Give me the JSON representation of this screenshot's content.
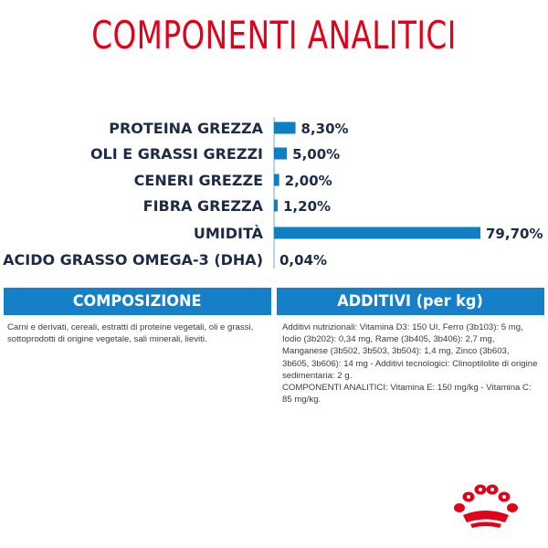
{
  "title": "COMPONENTI ANALITICI",
  "chart_data": {
    "type": "bar",
    "orientation": "horizontal",
    "title": "COMPONENTI ANALITICI",
    "categories": [
      "PROTEINA GREZZA",
      "OLI E GRASSI GREZZI",
      "CENERI GREZZE",
      "FIBRA GREZZA",
      "UMIDITÀ",
      "ACIDO GRASSO OMEGA-3 (DHA)"
    ],
    "values": [
      8.3,
      5.0,
      2.0,
      1.2,
      79.7,
      0.04
    ],
    "value_labels": [
      "8,30%",
      "5,00%",
      "2,00%",
      "1,20%",
      "79,70%",
      "0,04%"
    ],
    "unit": "%",
    "xlim": [
      0,
      79.7
    ],
    "grid": false,
    "bar_color": "#0f7fc3",
    "label_color": "#1d2b47"
  },
  "composizione": {
    "heading": "COMPOSIZIONE",
    "text": "Carni e derivati, cereali, estratti di proteine vegetali, oli e grassi, sottoprodotti di origine vegetale, sali minerali, lieviti."
  },
  "additivi": {
    "heading": "ADDITIVI (per kg)",
    "text": "Additivi nutrizionali: Vitamina D3: 150 UI, Ferro (3b103): 5 mg, Iodio (3b202): 0,34 mg, Rame (3b405, 3b406): 2,7 mg, Manganese (3b502, 3b503, 3b504): 1,4 mg, Zinco (3b603, 3b605, 3b606): 14 mg - Additivi tecnologici: Clinoptilolite di origine sedimentaria: 2 g.\nCOMPONENTI ANALITICI: Vitamina E: 150 mg/kg - Vitamina C: 85 mg/kg."
  },
  "colors": {
    "title": "#e2001a",
    "panel_head": "#1580c7",
    "logo": "#e2001a"
  },
  "logo_icon": "royal-crown-logo"
}
